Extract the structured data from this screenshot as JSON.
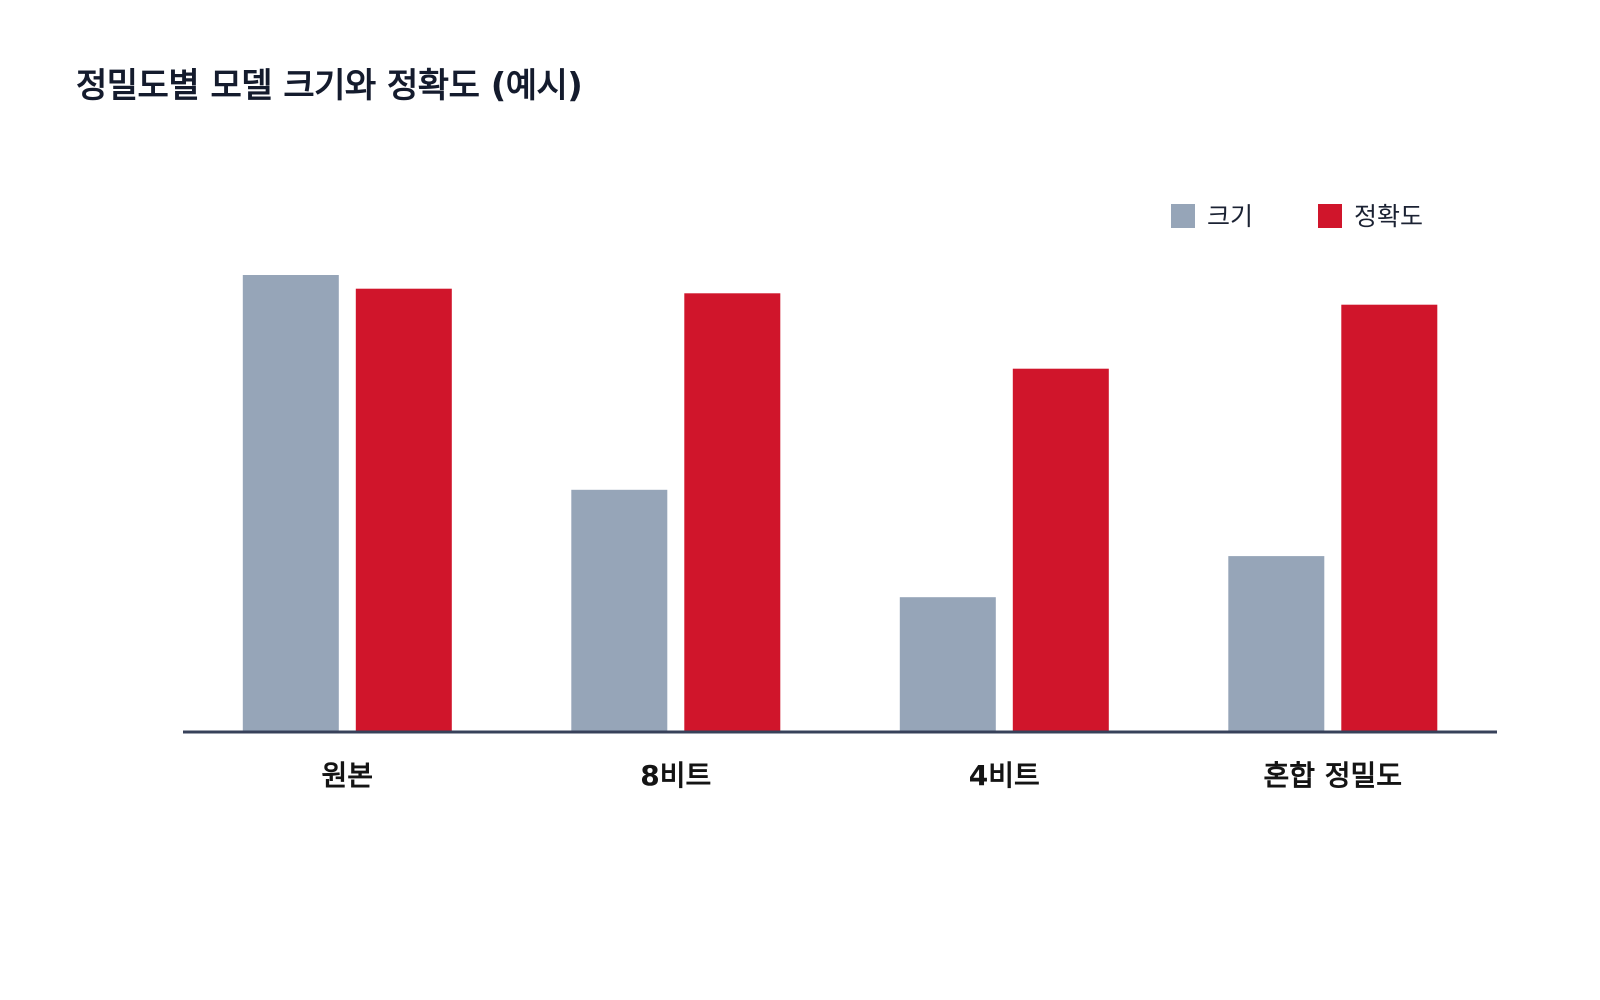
{
  "chart_data": {
    "type": "bar",
    "title": "정밀도별 모델 크기와 정확도 (예시)",
    "categories": [
      "원본",
      "8비트",
      "4비트",
      "혼합 정밀도"
    ],
    "series": [
      {
        "name": "크기",
        "color": "#96a5b8",
        "values": [
          100,
          53,
          29.5,
          38.5
        ]
      },
      {
        "name": "정확도",
        "color": "#d0152b",
        "values": [
          97,
          96,
          79.5,
          93.5
        ]
      }
    ],
    "ylim": [
      0,
      100
    ],
    "grid": false,
    "legend_position": "top-right",
    "axis_color": "#37415a"
  }
}
